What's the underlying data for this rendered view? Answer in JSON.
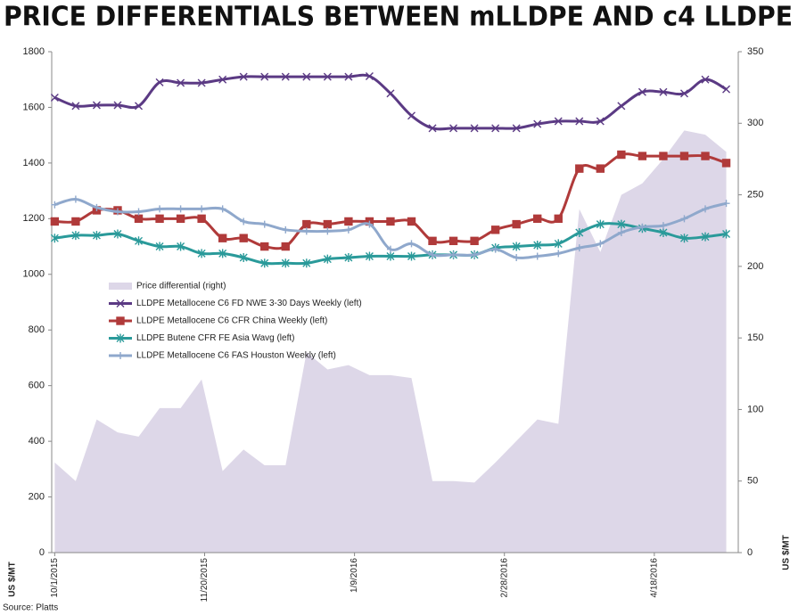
{
  "chart_data": {
    "type": "line",
    "title": "PRICE DIFFERENTIALS BETWEEN mLLDPE AND c4 LLDPE",
    "y_label": "US $/MT",
    "y2_label": "US $/MT",
    "source": "Source: Platts",
    "x": [
      "10/1/2015",
      "10/8/2015",
      "10/15/2015",
      "10/22/2015",
      "10/29/2015",
      "11/5/2015",
      "11/12/2015",
      "11/19/2015",
      "11/26/2015",
      "12/3/2015",
      "12/10/2015",
      "12/17/2015",
      "12/24/2015",
      "12/31/2015",
      "1/7/2016",
      "1/14/2016",
      "1/21/2016",
      "1/28/2016",
      "2/4/2016",
      "2/11/2016",
      "2/18/2016",
      "2/25/2016",
      "3/3/2016",
      "3/10/2016",
      "3/17/2016",
      "3/24/2016",
      "3/31/2016",
      "4/7/2016",
      "4/14/2016",
      "4/21/2016",
      "4/28/2016",
      "5/5/2016",
      "5/12/2016"
    ],
    "xlim": [
      "9/30/2015",
      "5/16/2016"
    ],
    "xticks": [
      "10/1/2015",
      "11/20/2015",
      "1/9/2016",
      "2/28/2016",
      "4/18/2016"
    ],
    "ylim": [
      0,
      1800
    ],
    "yticks": [
      0,
      200,
      400,
      600,
      800,
      1000,
      1200,
      1400,
      1600,
      1800
    ],
    "y2lim": [
      0,
      350
    ],
    "y2ticks": [
      0,
      50,
      100,
      150,
      200,
      250,
      300,
      350
    ],
    "legend": "left",
    "series": [
      {
        "name": "Price differential (right)",
        "color": "#ddd7e8",
        "axis": "y2",
        "kind": "area",
        "values": [
          63,
          50,
          93,
          84,
          81,
          101,
          101,
          121,
          57,
          72,
          61,
          61,
          140,
          128,
          131,
          124,
          124,
          122,
          50,
          50,
          49,
          63,
          78,
          93,
          90,
          240,
          210,
          250,
          258,
          275,
          295,
          292,
          280
        ]
      },
      {
        "name": "LLDPE Metallocene C6 FD NWE 3-30 Days Weekly (left)",
        "color": "#5b3a84",
        "marker": "x",
        "values": [
          1635,
          1605,
          1608,
          1608,
          1605,
          1690,
          1688,
          1688,
          1700,
          1710,
          1710,
          1710,
          1710,
          1710,
          1710,
          1712,
          1650,
          1570,
          1525,
          1525,
          1525,
          1525,
          1525,
          1540,
          1550,
          1550,
          1550,
          1605,
          1655,
          1655,
          1650,
          1700,
          1665
        ]
      },
      {
        "name": "LLDPE Metallocene C6 CFR China Weekly (left)",
        "color": "#b03a3a",
        "marker": "square",
        "values": [
          1190,
          1190,
          1230,
          1230,
          1200,
          1200,
          1200,
          1200,
          1130,
          1130,
          1100,
          1100,
          1180,
          1180,
          1190,
          1190,
          1190,
          1190,
          1120,
          1120,
          1120,
          1160,
          1180,
          1200,
          1200,
          1380,
          1380,
          1430,
          1425,
          1425,
          1425,
          1425,
          1400
        ]
      },
      {
        "name": "LLDPE Butene CFR FE Asia Wavg (left)",
        "color": "#2a9a9a",
        "marker": "star",
        "values": [
          1130,
          1140,
          1140,
          1145,
          1120,
          1100,
          1100,
          1075,
          1075,
          1060,
          1040,
          1040,
          1040,
          1055,
          1060,
          1065,
          1065,
          1065,
          1070,
          1070,
          1070,
          1095,
          1100,
          1105,
          1110,
          1150,
          1180,
          1180,
          1165,
          1150,
          1130,
          1135,
          1145
        ]
      },
      {
        "name": "LLDPE Metallocene C6 FAS Houston Weekly (left)",
        "color": "#8fa8cc",
        "marker": "plus",
        "values": [
          1250,
          1270,
          1240,
          1225,
          1225,
          1235,
          1235,
          1235,
          1235,
          1190,
          1180,
          1160,
          1155,
          1155,
          1160,
          1180,
          1090,
          1110,
          1070,
          1070,
          1070,
          1090,
          1060,
          1065,
          1075,
          1095,
          1110,
          1150,
          1170,
          1175,
          1200,
          1235,
          1255
        ]
      }
    ]
  }
}
